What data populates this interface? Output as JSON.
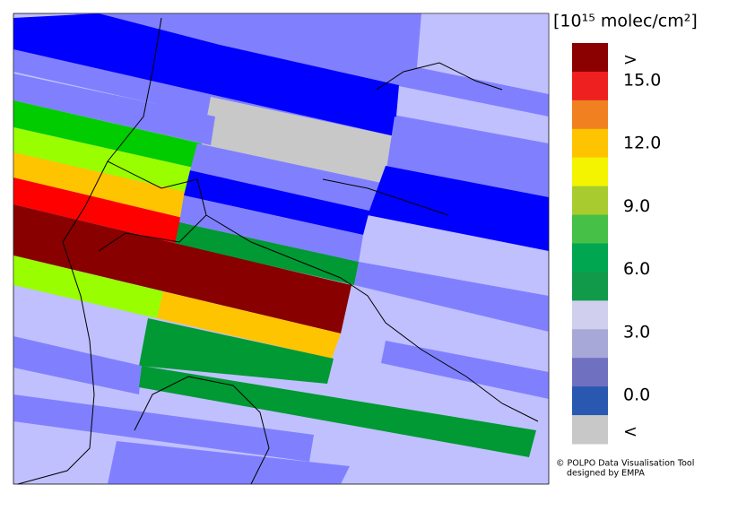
{
  "colorbar": {
    "unit": "[10¹⁵ molec/cm²]",
    "colors": [
      "#8b0000",
      "#ee2020",
      "#f08020",
      "#ffc400",
      "#f4f400",
      "#a8cc30",
      "#46c046",
      "#00a650",
      "#119a4a",
      "#d0d0ee",
      "#a8a8d8",
      "#7070c0",
      "#2858b0",
      "#c8c8c8"
    ],
    "labels": [
      ">",
      "15.0",
      "12.0",
      "9.0",
      "6.0",
      "3.0",
      "0.0",
      "<"
    ]
  },
  "credit": [
    "© POLPO Data Visualisation Tool",
    "designed by EMPA"
  ]
}
